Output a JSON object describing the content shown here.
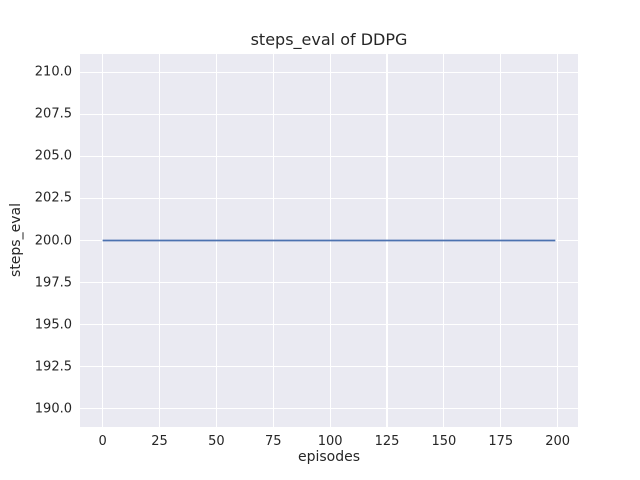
{
  "chart_data": {
    "type": "line",
    "title": "steps_eval of DDPG",
    "xlabel": "episodes",
    "ylabel": "steps_eval",
    "xlim": [
      -9.95,
      208.95
    ],
    "ylim": [
      188.9,
      211.1
    ],
    "x_tick_values": [
      0,
      25,
      50,
      75,
      100,
      125,
      150,
      175,
      200
    ],
    "x_tick_labels": [
      "0",
      "25",
      "50",
      "75",
      "100",
      "125",
      "150",
      "175",
      "200"
    ],
    "y_tick_values": [
      190.0,
      192.5,
      195.0,
      197.5,
      200.0,
      202.5,
      205.0,
      207.5,
      210.0
    ],
    "y_tick_labels": [
      "190.0",
      "192.5",
      "195.0",
      "197.5",
      "200.0",
      "202.5",
      "205.0",
      "207.5",
      "210.0"
    ],
    "grid": true,
    "grid_color": "#ffffff",
    "plot_background": "#eaeaf2",
    "legend": "none",
    "series": [
      {
        "name": "steps_eval",
        "color": "#4c72b0",
        "x": [
          0,
          199
        ],
        "y": [
          200.0,
          200.0
        ]
      }
    ]
  }
}
